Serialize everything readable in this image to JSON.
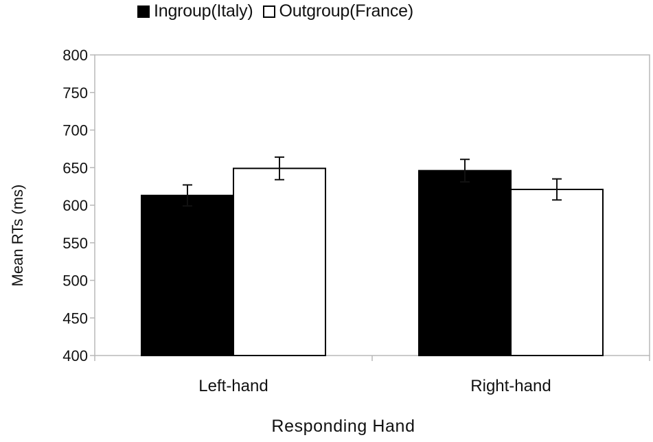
{
  "chart_data": {
    "type": "bar",
    "categories": [
      "Left-hand",
      "Right-hand"
    ],
    "series": [
      {
        "name": "Ingroup(Italy)",
        "values": [
          613,
          646
        ],
        "errors": [
          14,
          15
        ],
        "color": "#000000"
      },
      {
        "name": "Outgroup(France)",
        "values": [
          649,
          621
        ],
        "errors": [
          15,
          14
        ],
        "color": "#ffffff"
      }
    ],
    "xlabel": "Responding Hand",
    "ylabel": "Mean RTs (ms)",
    "ylim": [
      400,
      800
    ],
    "yticks": [
      "400",
      "450",
      "500",
      "550",
      "600",
      "650",
      "700",
      "750",
      "800"
    ],
    "grid": false,
    "legend_position": "top"
  }
}
